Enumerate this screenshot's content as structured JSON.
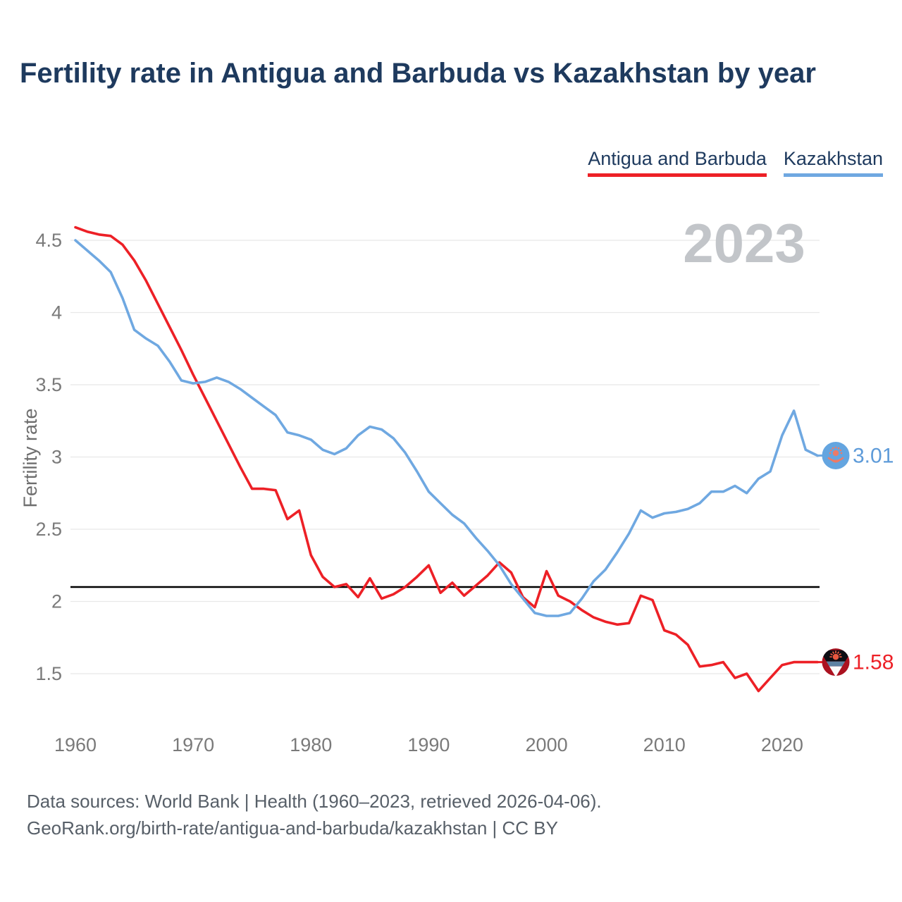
{
  "title": "Fertility rate in Antigua and Barbuda vs Kazakhstan by year",
  "watermark": "2023",
  "legend": [
    {
      "label": "Antigua and Barbuda",
      "color": "#ed2026"
    },
    {
      "label": "Kazakhstan",
      "color": "#6fa8e1"
    }
  ],
  "y_axis": {
    "label": "Fertility rate",
    "ticks": [
      4.5,
      4,
      3.5,
      3,
      2.5,
      2,
      1.5
    ]
  },
  "x_axis": {
    "ticks": [
      1960,
      1970,
      1980,
      1990,
      2000,
      2010,
      2020
    ]
  },
  "reference_line": {
    "value": 2.1,
    "color": "#000000"
  },
  "endpoints": [
    {
      "series": "Antigua and Barbuda",
      "value_label": "1.58",
      "color": "#ed2026",
      "flag": "antigua-and-barbuda"
    },
    {
      "series": "Kazakhstan",
      "value_label": "3.01",
      "color": "#5e9bd9",
      "flag": "kazakhstan"
    }
  ],
  "footer": {
    "line1": "Data sources: World Bank | Health (1960–2023, retrieved 2026-04-06).",
    "line2": "GeoRank.org/birth-rate/antigua-and-barbuda/kazakhstan | CC BY"
  },
  "colors": {
    "title": "#1e3a5e",
    "axis_text": "#7a7a7a",
    "gridline": "#e8e8e8",
    "watermark": "#c2c5c9",
    "antigua": "#ed2026",
    "kazakhstan": "#6fa8e1"
  },
  "chart_data": {
    "type": "line",
    "title": "Fertility rate in Antigua and Barbuda vs Kazakhstan by year",
    "xlabel": "",
    "ylabel": "Fertility rate",
    "xlim": [
      1960,
      2023
    ],
    "ylim": [
      1.3,
      4.7
    ],
    "grid": true,
    "legend_position": "top-right",
    "annotations": {
      "replacement_level_line": 2.1,
      "year_watermark": "2023"
    },
    "x": [
      1960,
      1961,
      1962,
      1963,
      1964,
      1965,
      1966,
      1967,
      1968,
      1969,
      1970,
      1971,
      1972,
      1973,
      1974,
      1975,
      1976,
      1977,
      1978,
      1979,
      1980,
      1981,
      1982,
      1983,
      1984,
      1985,
      1986,
      1987,
      1988,
      1989,
      1990,
      1991,
      1992,
      1993,
      1994,
      1995,
      1996,
      1997,
      1998,
      1999,
      2000,
      2001,
      2002,
      2003,
      2004,
      2005,
      2006,
      2007,
      2008,
      2009,
      2010,
      2011,
      2012,
      2013,
      2014,
      2015,
      2016,
      2017,
      2018,
      2019,
      2020,
      2021,
      2022,
      2023
    ],
    "series": [
      {
        "name": "Antigua and Barbuda",
        "color": "#ed2026",
        "end_label": "1.58",
        "values": [
          4.59,
          4.56,
          4.54,
          4.53,
          4.47,
          4.36,
          4.22,
          4.06,
          3.9,
          3.74,
          3.57,
          3.41,
          3.25,
          3.09,
          2.93,
          2.78,
          2.78,
          2.77,
          2.57,
          2.63,
          2.32,
          2.17,
          2.1,
          2.12,
          2.03,
          2.16,
          2.02,
          2.05,
          2.1,
          2.17,
          2.25,
          2.06,
          2.13,
          2.04,
          2.11,
          2.18,
          2.27,
          2.2,
          2.03,
          1.96,
          2.21,
          2.04,
          2.0,
          1.94,
          1.89,
          1.86,
          1.84,
          1.85,
          2.04,
          2.01,
          1.8,
          1.77,
          1.7,
          1.55,
          1.56,
          1.58,
          1.47,
          1.5,
          1.38,
          1.47,
          1.56,
          1.58,
          1.58,
          1.58
        ]
      },
      {
        "name": "Kazakhstan",
        "color": "#6fa8e1",
        "end_label": "3.01",
        "values": [
          4.5,
          4.43,
          4.36,
          4.28,
          4.1,
          3.88,
          3.82,
          3.77,
          3.66,
          3.53,
          3.51,
          3.52,
          3.55,
          3.52,
          3.47,
          3.41,
          3.35,
          3.29,
          3.17,
          3.15,
          3.12,
          3.05,
          3.02,
          3.06,
          3.15,
          3.21,
          3.19,
          3.13,
          3.03,
          2.9,
          2.76,
          2.68,
          2.6,
          2.54,
          2.44,
          2.35,
          2.25,
          2.12,
          2.02,
          1.92,
          1.9,
          1.9,
          1.92,
          2.02,
          2.14,
          2.22,
          2.34,
          2.47,
          2.63,
          2.58,
          2.61,
          2.62,
          2.64,
          2.68,
          2.76,
          2.76,
          2.8,
          2.75,
          2.85,
          2.9,
          3.15,
          3.32,
          3.05,
          3.01
        ]
      }
    ]
  }
}
